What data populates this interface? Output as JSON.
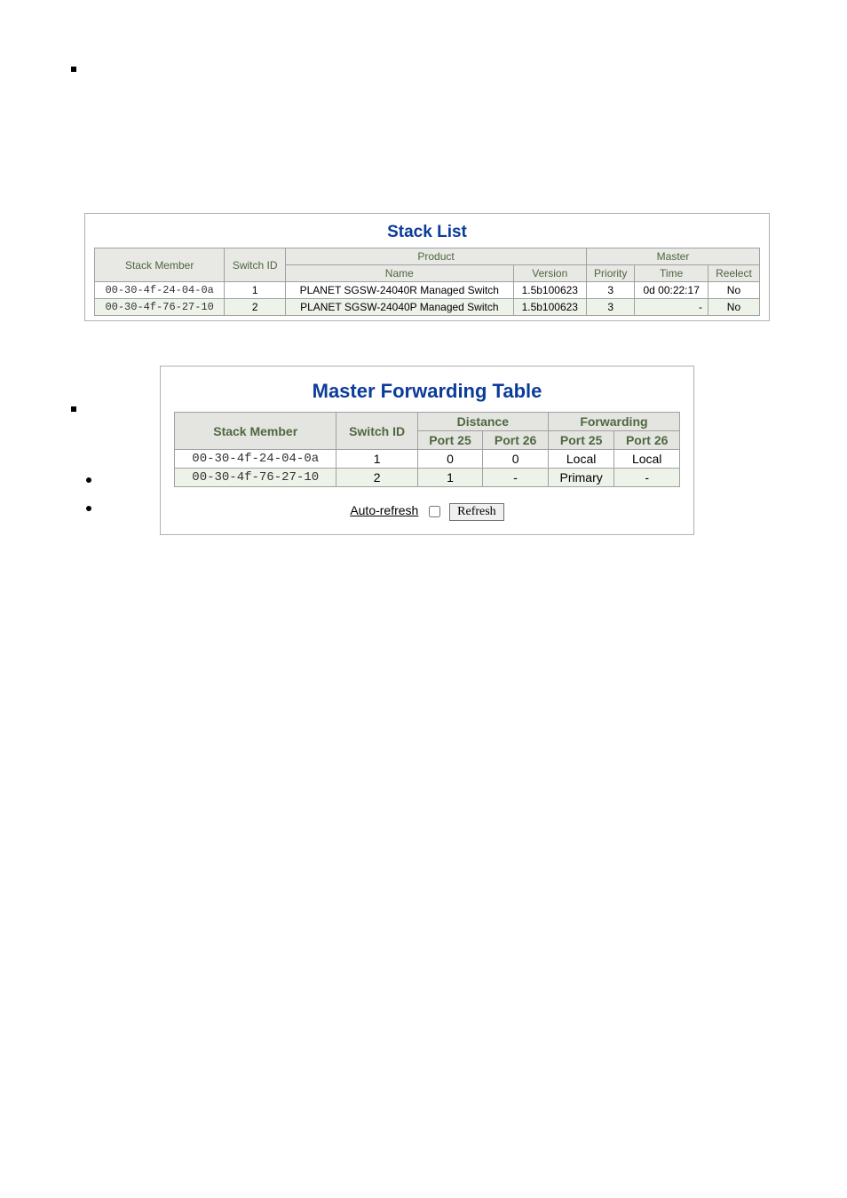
{
  "stack_list": {
    "title": "Stack List",
    "headers": {
      "stack_member": "Stack Member",
      "switch_id": "Switch ID",
      "product": "Product",
      "name": "Name",
      "version": "Version",
      "master": "Master",
      "priority": "Priority",
      "time": "Time",
      "reelect": "Reelect"
    },
    "rows": [
      {
        "mac": "00-30-4f-24-04-0a",
        "switch_id": "1",
        "name": "PLANET SGSW-24040R Managed Switch",
        "version": "1.5b100623",
        "priority": "3",
        "time": "0d 00:22:17",
        "reelect": "No"
      },
      {
        "mac": "00-30-4f-76-27-10",
        "switch_id": "2",
        "name": "PLANET SGSW-24040P Managed Switch",
        "version": "1.5b100623",
        "priority": "3",
        "time": "-",
        "reelect": "No"
      }
    ]
  },
  "mft": {
    "title": "Master Forwarding Table",
    "headers": {
      "stack_member": "Stack Member",
      "switch_id": "Switch ID",
      "distance": "Distance",
      "forwarding": "Forwarding",
      "port25": "Port 25",
      "port26": "Port 26"
    },
    "rows": [
      {
        "mac": "00-30-4f-24-04-0a",
        "switch_id": "1",
        "d25": "0",
        "d26": "0",
        "f25": "Local",
        "f26": "Local"
      },
      {
        "mac": "00-30-4f-76-27-10",
        "switch_id": "2",
        "d25": "1",
        "d26": "-",
        "f25": "Primary",
        "f26": "-"
      }
    ]
  },
  "controls": {
    "auto_refresh_label": "Auto-refresh",
    "refresh_label": "Refresh"
  },
  "colors": {
    "title_color": "#0b3c9a",
    "header_bg": "#e8e8e4",
    "header_text": "#4e6840",
    "alt_row_bg": "#eef3ea",
    "border_color": "#a0a0a0"
  }
}
